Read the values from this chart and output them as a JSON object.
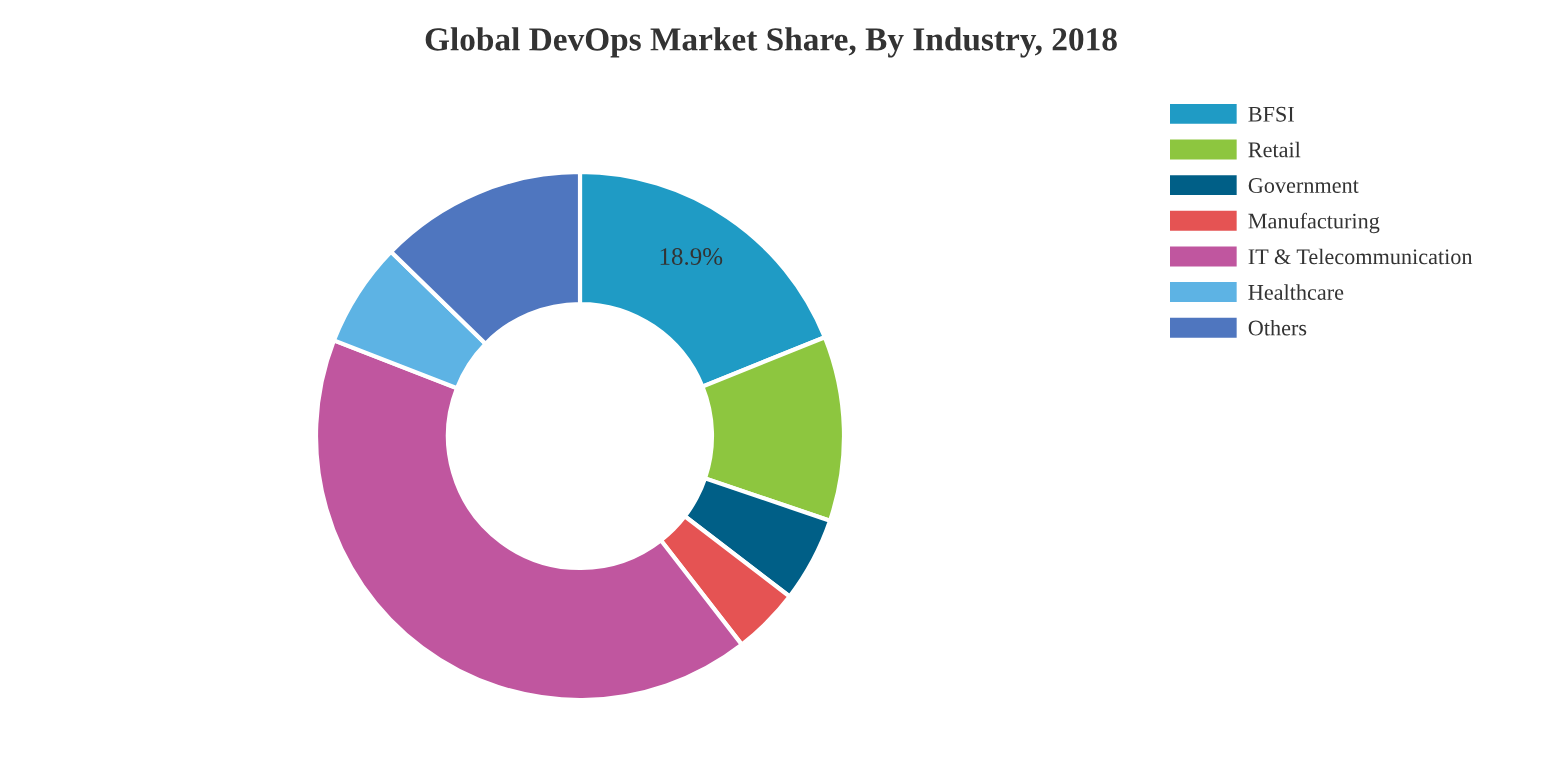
{
  "chart_data": {
    "type": "donut",
    "title": "Global DevOps Market Share, By Industry, 2018",
    "categories": [
      "BFSI",
      "Retail",
      "Government",
      "Manufacturing",
      "IT & Telecommunication",
      "Healthcare",
      "Others"
    ],
    "values": [
      18.9,
      11.3,
      5.2,
      4.1,
      41.4,
      6.4,
      12.7
    ],
    "colors": [
      "#1f9bc5",
      "#8dc63f",
      "#005f87",
      "#e55353",
      "#c0569f",
      "#5db3e4",
      "#4f76bf"
    ],
    "value_labels": [
      "18.9%",
      null,
      null,
      null,
      null,
      null,
      null
    ],
    "legend": "top right"
  }
}
